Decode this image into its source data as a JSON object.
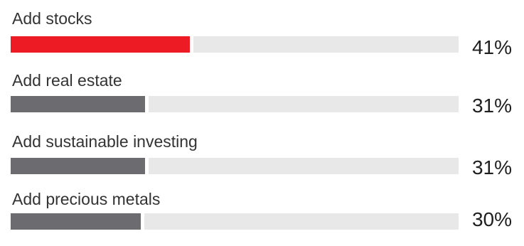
{
  "chart_data": {
    "type": "bar",
    "orientation": "horizontal",
    "categories": [
      "Add stocks",
      "Add real estate",
      "Add sustainable investing",
      "Add precious metals"
    ],
    "values": [
      41,
      31,
      31,
      30
    ],
    "value_labels": [
      "41%",
      "31%",
      "31%",
      "30%"
    ],
    "unit": "%",
    "xlim": [
      0,
      100
    ],
    "title": "",
    "xlabel": "",
    "ylabel": "",
    "grid": false,
    "legend": "none",
    "colors": {
      "highlight": "#ed1c24",
      "default": "#6c6c70",
      "track": "#e8e8e9"
    }
  }
}
